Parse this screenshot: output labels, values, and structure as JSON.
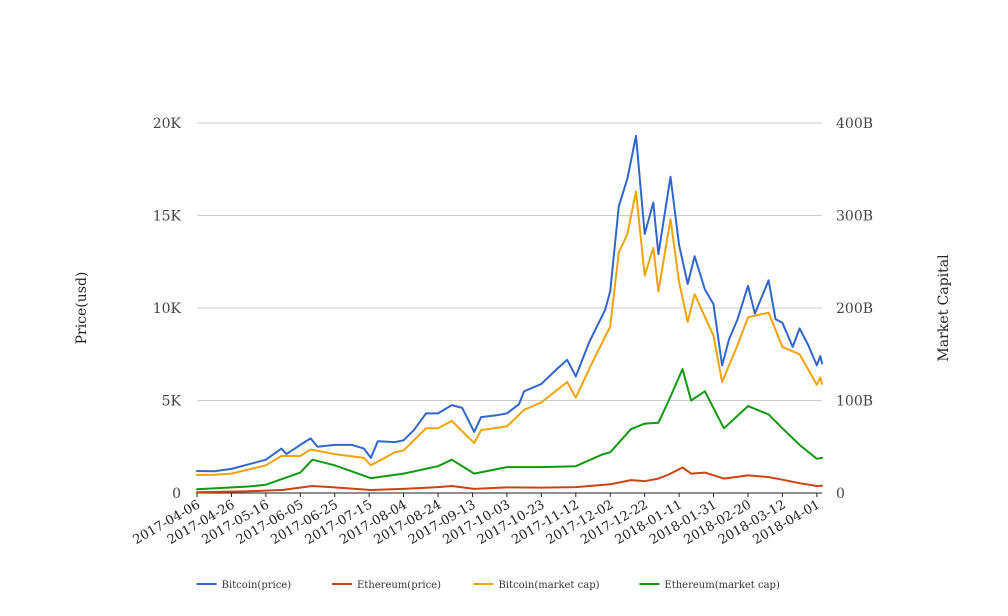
{
  "chart_data": {
    "type": "line",
    "title": "",
    "ylabel_left": "Price(usd)",
    "ylabel_right": "Market Capital",
    "left_axis": {
      "min": 0,
      "max": 20000,
      "ticks": [
        0,
        5000,
        10000,
        15000,
        20000
      ],
      "tick_labels": [
        "0",
        "5K",
        "10K",
        "15K",
        "20K"
      ]
    },
    "right_axis": {
      "min": 0,
      "max": 400000000000,
      "ticks": [
        0,
        100000000000,
        200000000000,
        300000000000,
        400000000000
      ],
      "tick_labels": [
        "0",
        "100B",
        "200B",
        "300B",
        "400B"
      ]
    },
    "x_axis": {
      "start": "2017-04-06",
      "end": "2018-04-04",
      "tick_labels": [
        "2017-04-06",
        "2017-04-26",
        "2017-05-16",
        "2017-06-05",
        "2017-06-25",
        "2017-07-15",
        "2017-08-04",
        "2017-08-24",
        "2017-09-13",
        "2017-10-03",
        "2017-10-23",
        "2017-11-12",
        "2017-12-02",
        "2017-12-22",
        "2018-01-11",
        "2018-01-31",
        "2018-02-20",
        "2018-03-12",
        "2018-04-01"
      ]
    },
    "grid": "horizontal",
    "legend_position": "bottom",
    "series": [
      {
        "name": "Bitcoin(price)",
        "axis": "left",
        "color": "#3366cc",
        "points": [
          [
            "2017-04-06",
            1190
          ],
          [
            "2017-04-16",
            1180
          ],
          [
            "2017-04-26",
            1300
          ],
          [
            "2017-05-06",
            1550
          ],
          [
            "2017-05-16",
            1800
          ],
          [
            "2017-05-25",
            2400
          ],
          [
            "2017-05-28",
            2100
          ],
          [
            "2017-06-05",
            2600
          ],
          [
            "2017-06-11",
            2950
          ],
          [
            "2017-06-15",
            2500
          ],
          [
            "2017-06-25",
            2600
          ],
          [
            "2017-07-05",
            2600
          ],
          [
            "2017-07-12",
            2400
          ],
          [
            "2017-07-16",
            1900
          ],
          [
            "2017-07-20",
            2800
          ],
          [
            "2017-07-30",
            2750
          ],
          [
            "2017-08-04",
            2850
          ],
          [
            "2017-08-10",
            3400
          ],
          [
            "2017-08-17",
            4300
          ],
          [
            "2017-08-24",
            4300
          ],
          [
            "2017-09-01",
            4750
          ],
          [
            "2017-09-07",
            4600
          ],
          [
            "2017-09-14",
            3300
          ],
          [
            "2017-09-18",
            4100
          ],
          [
            "2017-09-27",
            4200
          ],
          [
            "2017-10-03",
            4300
          ],
          [
            "2017-10-10",
            4800
          ],
          [
            "2017-10-13",
            5500
          ],
          [
            "2017-10-23",
            5900
          ],
          [
            "2017-11-01",
            6700
          ],
          [
            "2017-11-07",
            7200
          ],
          [
            "2017-11-12",
            6300
          ],
          [
            "2017-11-20",
            8200
          ],
          [
            "2017-11-29",
            9900
          ],
          [
            "2017-12-02",
            10900
          ],
          [
            "2017-12-07",
            15500
          ],
          [
            "2017-12-12",
            17000
          ],
          [
            "2017-12-17",
            19300
          ],
          [
            "2017-12-22",
            14000
          ],
          [
            "2017-12-27",
            15700
          ],
          [
            "2017-12-30",
            12900
          ],
          [
            "2018-01-06",
            17100
          ],
          [
            "2018-01-11",
            13400
          ],
          [
            "2018-01-16",
            11300
          ],
          [
            "2018-01-20",
            12800
          ],
          [
            "2018-01-26",
            11000
          ],
          [
            "2018-01-31",
            10200
          ],
          [
            "2018-02-05",
            6900
          ],
          [
            "2018-02-09",
            8300
          ],
          [
            "2018-02-14",
            9400
          ],
          [
            "2018-02-20",
            11200
          ],
          [
            "2018-02-24",
            9700
          ],
          [
            "2018-03-04",
            11500
          ],
          [
            "2018-03-08",
            9400
          ],
          [
            "2018-03-12",
            9200
          ],
          [
            "2018-03-18",
            7900
          ],
          [
            "2018-03-22",
            8900
          ],
          [
            "2018-03-27",
            8000
          ],
          [
            "2018-04-01",
            6900
          ],
          [
            "2018-04-03",
            7400
          ],
          [
            "2018-04-04",
            7000
          ]
        ]
      },
      {
        "name": "Ethereum(price)",
        "axis": "left",
        "color": "#cc4411",
        "points": [
          [
            "2017-04-06",
            40
          ],
          [
            "2017-05-06",
            90
          ],
          [
            "2017-05-26",
            170
          ],
          [
            "2017-06-12",
            380
          ],
          [
            "2017-06-25",
            300
          ],
          [
            "2017-07-16",
            160
          ],
          [
            "2017-08-04",
            220
          ],
          [
            "2017-08-24",
            320
          ],
          [
            "2017-09-01",
            380
          ],
          [
            "2017-09-14",
            220
          ],
          [
            "2017-10-03",
            300
          ],
          [
            "2017-10-23",
            290
          ],
          [
            "2017-11-12",
            320
          ],
          [
            "2017-11-28",
            440
          ],
          [
            "2017-12-02",
            470
          ],
          [
            "2017-12-14",
            700
          ],
          [
            "2017-12-22",
            640
          ],
          [
            "2017-12-30",
            780
          ],
          [
            "2018-01-05",
            1000
          ],
          [
            "2018-01-13",
            1380
          ],
          [
            "2018-01-18",
            1050
          ],
          [
            "2018-01-26",
            1100
          ],
          [
            "2018-02-06",
            780
          ],
          [
            "2018-02-20",
            950
          ],
          [
            "2018-03-04",
            860
          ],
          [
            "2018-03-12",
            720
          ],
          [
            "2018-03-22",
            530
          ],
          [
            "2018-04-01",
            380
          ],
          [
            "2018-04-04",
            390
          ]
        ]
      },
      {
        "name": "Bitcoin(market cap)",
        "axis": "right",
        "color": "#f0a30a",
        "points": [
          [
            "2017-04-06",
            19500000000
          ],
          [
            "2017-04-16",
            19700000000
          ],
          [
            "2017-04-26",
            21000000000
          ],
          [
            "2017-05-16",
            30000000000
          ],
          [
            "2017-05-25",
            40000000000
          ],
          [
            "2017-06-05",
            40000000000
          ],
          [
            "2017-06-11",
            47000000000
          ],
          [
            "2017-06-25",
            42000000000
          ],
          [
            "2017-07-12",
            38000000000
          ],
          [
            "2017-07-16",
            30000000000
          ],
          [
            "2017-07-30",
            44000000000
          ],
          [
            "2017-08-04",
            46000000000
          ],
          [
            "2017-08-17",
            70000000000
          ],
          [
            "2017-08-24",
            70000000000
          ],
          [
            "2017-09-01",
            78000000000
          ],
          [
            "2017-09-14",
            54000000000
          ],
          [
            "2017-09-18",
            68000000000
          ],
          [
            "2017-10-03",
            72000000000
          ],
          [
            "2017-10-13",
            90000000000
          ],
          [
            "2017-10-23",
            98000000000
          ],
          [
            "2017-11-07",
            120000000000
          ],
          [
            "2017-11-12",
            103000000000
          ],
          [
            "2017-11-20",
            135000000000
          ],
          [
            "2017-12-02",
            180000000000
          ],
          [
            "2017-12-07",
            260000000000
          ],
          [
            "2017-12-12",
            280000000000
          ],
          [
            "2017-12-17",
            326000000000
          ],
          [
            "2017-12-22",
            235000000000
          ],
          [
            "2017-12-27",
            265000000000
          ],
          [
            "2017-12-30",
            218000000000
          ],
          [
            "2018-01-06",
            296000000000
          ],
          [
            "2018-01-11",
            228000000000
          ],
          [
            "2018-01-16",
            185000000000
          ],
          [
            "2018-01-20",
            215000000000
          ],
          [
            "2018-01-31",
            170000000000
          ],
          [
            "2018-02-05",
            120000000000
          ],
          [
            "2018-02-14",
            160000000000
          ],
          [
            "2018-02-20",
            190000000000
          ],
          [
            "2018-03-04",
            195000000000
          ],
          [
            "2018-03-12",
            158000000000
          ],
          [
            "2018-03-22",
            150000000000
          ],
          [
            "2018-04-01",
            117000000000
          ],
          [
            "2018-04-03",
            125000000000
          ],
          [
            "2018-04-04",
            118000000000
          ]
        ]
      },
      {
        "name": "Ethereum(market cap)",
        "axis": "right",
        "color": "#119911",
        "points": [
          [
            "2017-04-06",
            4000000000
          ],
          [
            "2017-05-06",
            7000000000
          ],
          [
            "2017-05-16",
            9000000000
          ],
          [
            "2017-06-05",
            22000000000
          ],
          [
            "2017-06-12",
            36000000000
          ],
          [
            "2017-06-25",
            30000000000
          ],
          [
            "2017-07-16",
            16000000000
          ],
          [
            "2017-08-04",
            21000000000
          ],
          [
            "2017-08-24",
            29000000000
          ],
          [
            "2017-09-01",
            36000000000
          ],
          [
            "2017-09-14",
            21000000000
          ],
          [
            "2017-10-03",
            28000000000
          ],
          [
            "2017-10-23",
            28000000000
          ],
          [
            "2017-11-12",
            29000000000
          ],
          [
            "2017-11-28",
            42000000000
          ],
          [
            "2017-12-02",
            44000000000
          ],
          [
            "2017-12-14",
            69000000000
          ],
          [
            "2017-12-22",
            75000000000
          ],
          [
            "2017-12-30",
            76000000000
          ],
          [
            "2018-01-05",
            100000000000
          ],
          [
            "2018-01-13",
            134000000000
          ],
          [
            "2018-01-18",
            100000000000
          ],
          [
            "2018-01-26",
            110000000000
          ],
          [
            "2018-02-06",
            70000000000
          ],
          [
            "2018-02-20",
            94000000000
          ],
          [
            "2018-03-04",
            85000000000
          ],
          [
            "2018-03-12",
            70000000000
          ],
          [
            "2018-03-22",
            52000000000
          ],
          [
            "2018-04-01",
            37000000000
          ],
          [
            "2018-04-04",
            38000000000
          ]
        ]
      }
    ]
  }
}
